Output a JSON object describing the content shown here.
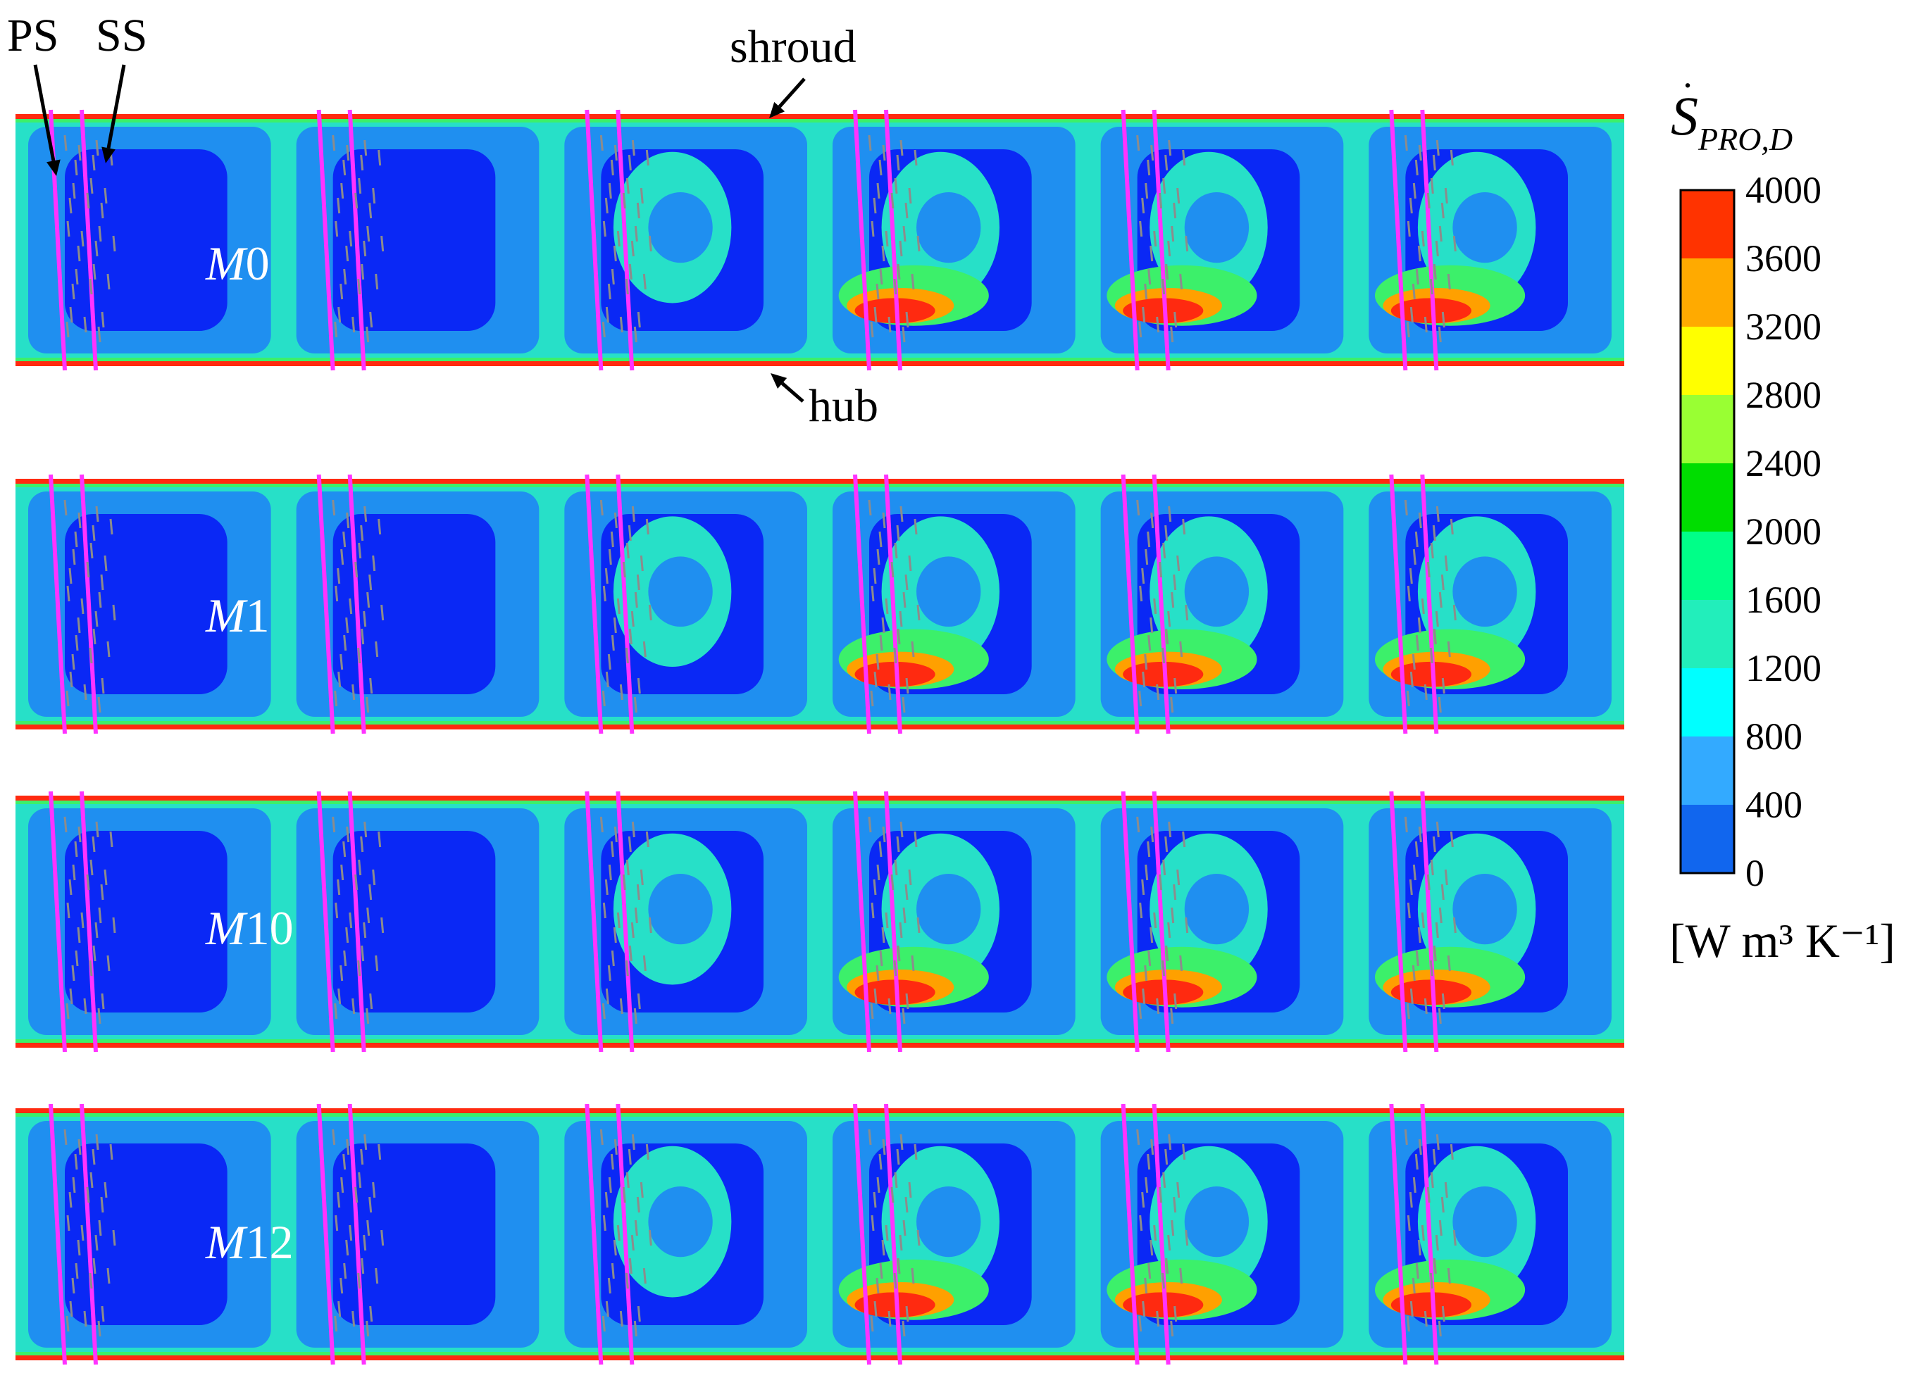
{
  "annotations": {
    "ps": "PS",
    "ss": "SS",
    "shroud": "shroud",
    "hub": "hub"
  },
  "cases": [
    {
      "id": "M0",
      "prefix": "M",
      "number": "0"
    },
    {
      "id": "M1",
      "prefix": "M",
      "number": "1"
    },
    {
      "id": "M10",
      "prefix": "M",
      "number": "10"
    },
    {
      "id": "M12",
      "prefix": "M",
      "number": "12"
    }
  ],
  "colorbar": {
    "symbol": "S",
    "subscript": "PRO,D",
    "units_text": "[W m³ K⁻¹]",
    "ticks": [
      "4000",
      "3600",
      "3200",
      "2800",
      "2400",
      "2000",
      "1600",
      "1200",
      "800",
      "400",
      "0"
    ],
    "colors": [
      "#ff3300",
      "#ffaa00",
      "#ffff00",
      "#99ff33",
      "#00dd00",
      "#00ff88",
      "#22eebb",
      "#00ffff",
      "#33aaff",
      "#1166ee",
      "#0022ff"
    ]
  },
  "field_colors": {
    "background": "#0a28f5",
    "low": "#1f8ff0",
    "mid": "#27e0c8",
    "green": "#3cf06a",
    "hot": "#ff2a10",
    "orange": "#ffa000",
    "blade_line": "#ff33ff",
    "particles": "#8c8c8c"
  }
}
